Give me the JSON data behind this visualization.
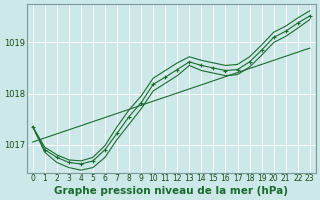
{
  "title": "Graphe pression niveau de la mer (hPa)",
  "background_color": "#cde8e8",
  "plot_bg_color": "#cde8e8",
  "grid_color": "#ffffff",
  "line_color": "#1a6b2e",
  "hours": [
    0,
    1,
    2,
    3,
    4,
    5,
    6,
    7,
    8,
    9,
    10,
    11,
    12,
    13,
    14,
    15,
    16,
    17,
    18,
    19,
    20,
    21,
    22,
    23
  ],
  "pressure_main": [
    1017.35,
    1016.9,
    1016.75,
    1016.65,
    1016.62,
    1016.68,
    1016.9,
    1017.22,
    1017.55,
    1017.82,
    1018.18,
    1018.32,
    1018.47,
    1018.62,
    1018.55,
    1018.5,
    1018.45,
    1018.47,
    1018.62,
    1018.85,
    1019.1,
    1019.22,
    1019.38,
    1019.52
  ],
  "pressure_upper": [
    1017.35,
    1016.85,
    1016.65,
    1016.55,
    1016.5,
    1016.55,
    1016.75,
    1017.1,
    1017.4,
    1017.7,
    1018.05,
    1018.2,
    1018.35,
    1018.55,
    1018.45,
    1018.4,
    1018.35,
    1018.37,
    1018.52,
    1018.75,
    1019.0,
    1019.12,
    1019.28,
    1019.45
  ],
  "pressure_lower": [
    1017.35,
    1016.95,
    1016.8,
    1016.7,
    1016.68,
    1016.75,
    1016.98,
    1017.35,
    1017.68,
    1017.95,
    1018.3,
    1018.45,
    1018.6,
    1018.72,
    1018.65,
    1018.6,
    1018.55,
    1018.57,
    1018.72,
    1018.95,
    1019.2,
    1019.32,
    1019.48,
    1019.62
  ],
  "pressure_straight": [
    1017.05,
    1017.13,
    1017.21,
    1017.29,
    1017.37,
    1017.45,
    1017.53,
    1017.61,
    1017.69,
    1017.77,
    1017.85,
    1017.93,
    1018.01,
    1018.09,
    1018.17,
    1018.25,
    1018.33,
    1018.41,
    1018.49,
    1018.57,
    1018.65,
    1018.73,
    1018.81,
    1018.89
  ],
  "ylim": [
    1016.45,
    1019.75
  ],
  "yticks": [
    1017,
    1018,
    1019
  ],
  "xlim": [
    -0.5,
    23.5
  ],
  "title_fontsize": 7.5,
  "tick_fontsize": 5.5
}
